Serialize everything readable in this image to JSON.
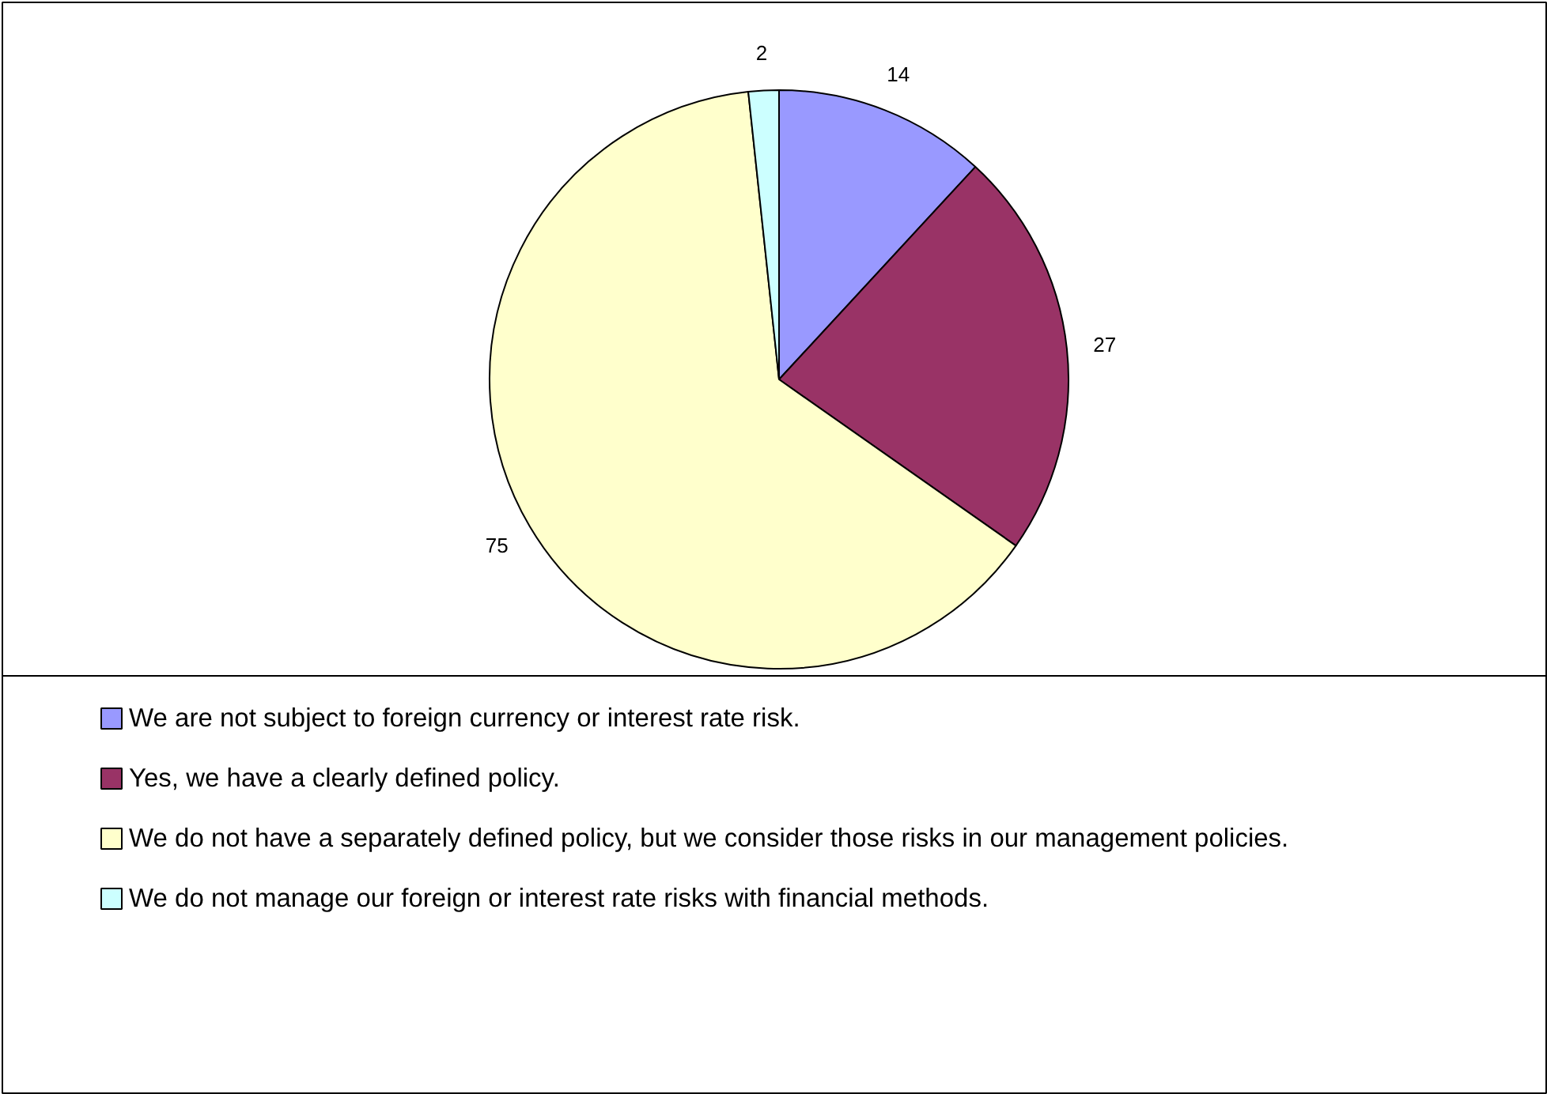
{
  "chart_data": {
    "type": "pie",
    "categories": [
      "We are not subject to foreign currency or interest rate risk.",
      "Yes, we have a clearly defined policy.",
      "We do not have a separately defined policy, but we consider those risks in our management policies.",
      "We do not manage our foreign or interest rate risks with financial methods."
    ],
    "values": [
      14,
      27,
      75,
      2
    ],
    "colors": [
      "#9999ff",
      "#993366",
      "#ffffcc",
      "#ccffff"
    ],
    "data_labels": true,
    "legend": "bottom"
  }
}
